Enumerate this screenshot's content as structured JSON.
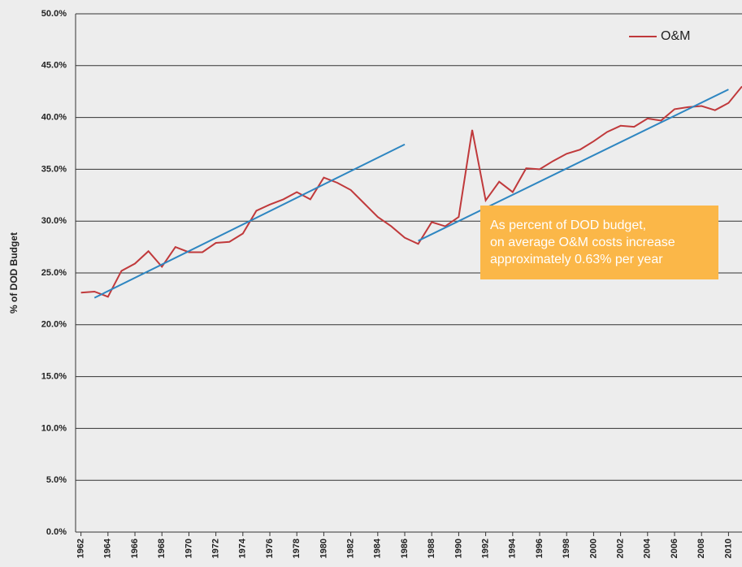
{
  "chart_data": {
    "type": "line",
    "y_label": "% of DOD Budget",
    "x": [
      1962,
      1963,
      1964,
      1965,
      1966,
      1967,
      1968,
      1969,
      1970,
      1971,
      1972,
      1973,
      1974,
      1975,
      1976,
      1977,
      1978,
      1979,
      1980,
      1981,
      1982,
      1983,
      1984,
      1985,
      1986,
      1987,
      1988,
      1989,
      1990,
      1991,
      1992,
      1993,
      1994,
      1995,
      1996,
      1997,
      1998,
      1999,
      2000,
      2001,
      2002,
      2003,
      2004,
      2005,
      2006,
      2007,
      2008,
      2009,
      2010,
      2011
    ],
    "series": [
      {
        "name": "O&M",
        "color": "#c0393b",
        "values": [
          23.1,
          23.2,
          22.7,
          25.2,
          25.9,
          27.1,
          25.6,
          27.5,
          27.0,
          27.0,
          27.9,
          28.0,
          28.8,
          31.0,
          31.6,
          32.1,
          32.8,
          32.1,
          34.2,
          33.7,
          33.0,
          31.7,
          30.4,
          29.5,
          28.4,
          27.8,
          29.9,
          29.5,
          30.4,
          38.8,
          32.0,
          33.8,
          32.8,
          35.1,
          35.0,
          35.8,
          36.5,
          36.9,
          37.7,
          38.6,
          39.2,
          39.1,
          39.9,
          39.7,
          40.8,
          41.0,
          41.1,
          40.7,
          41.4,
          43.0
        ]
      }
    ],
    "trend_lines": [
      {
        "color": "#2e86c1",
        "x": [
          1963,
          1986
        ],
        "values": [
          22.6,
          37.4
        ]
      },
      {
        "color": "#2e86c1",
        "x": [
          1987,
          2010
        ],
        "values": [
          28.1,
          42.7
        ]
      }
    ],
    "annotation": {
      "lines": [
        "As percent of DOD budget,",
        "on average O&M costs increase",
        "approximately 0.63% per year"
      ],
      "color": "#fbb748"
    },
    "xlim": [
      1961.6,
      2011
    ],
    "xticks": [
      1962,
      1964,
      1966,
      1968,
      1970,
      1972,
      1974,
      1976,
      1978,
      1980,
      1982,
      1984,
      1986,
      1988,
      1990,
      1992,
      1994,
      1996,
      1998,
      2000,
      2002,
      2004,
      2006,
      2008,
      2010
    ],
    "ylim": [
      0,
      50
    ],
    "yticks": [
      {
        "value": 0,
        "label": "0.0%"
      },
      {
        "value": 5,
        "label": "5.0%"
      },
      {
        "value": 10,
        "label": "10.0%"
      },
      {
        "value": 15,
        "label": "15.0%"
      },
      {
        "value": 20,
        "label": "20.0%"
      },
      {
        "value": 25,
        "label": "25.0%"
      },
      {
        "value": 30,
        "label": "30.0%"
      },
      {
        "value": 35,
        "label": "35.0%"
      },
      {
        "value": 40,
        "label": "40.0%"
      },
      {
        "value": 45,
        "label": "45.0%"
      },
      {
        "value": 50,
        "label": "50.0%"
      }
    ],
    "grid": true,
    "legend": "top-right"
  }
}
